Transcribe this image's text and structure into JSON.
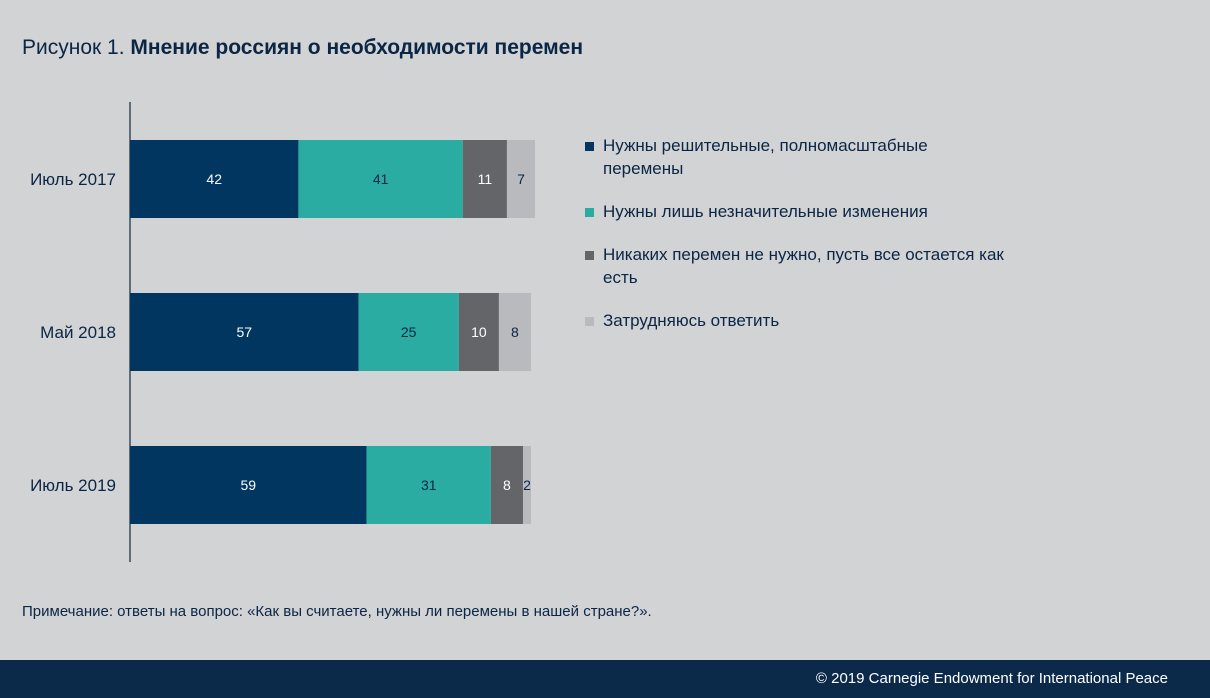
{
  "title": {
    "lead": "Рисунок 1.",
    "main": "Мнение россиян о необходимости перемен"
  },
  "chart_data": {
    "type": "bar",
    "orientation": "horizontal",
    "stacked": true,
    "categories": [
      "Июль 2017",
      "Май 2018",
      "Июль 2019"
    ],
    "series": [
      {
        "name": "Нужны решительные, полномасштабные перемены",
        "values": [
          42,
          57,
          59
        ],
        "color": "#003660",
        "label_color": "#ffffff"
      },
      {
        "name": "Нужны лишь незначительные изменения",
        "values": [
          41,
          25,
          31
        ],
        "color": "#2aaca2",
        "label_color": "#0b2545"
      },
      {
        "name": "Никаких перемен не нужно, пусть все остается как есть",
        "values": [
          11,
          10,
          8
        ],
        "color": "#646569",
        "label_color": "#ffffff"
      },
      {
        "name": "Затрудняюсь ответить",
        "values": [
          7,
          8,
          2
        ],
        "color": "#b9babd",
        "label_color": "#0b2545"
      }
    ],
    "xlim": [
      0,
      100
    ],
    "unit": "%"
  },
  "legend": {
    "items": [
      {
        "label": "Нужны решительные, полномасштабные перемены",
        "color": "#003660"
      },
      {
        "label": "Нужны лишь незначительные изменения",
        "color": "#2aaca2"
      },
      {
        "label": "Никаких перемен не нужно, пусть все остается как есть",
        "color": "#646569"
      },
      {
        "label": "Затрудняюсь ответить",
        "color": "#b9babd"
      }
    ]
  },
  "note": {
    "label": "Примечание:",
    "text": " ответы на вопрос: «Как вы считаете, нужны ли перемены в нашей стране?»."
  },
  "footer": {
    "copyright": "© 2019 Carnegie Endowment for International Peace"
  }
}
